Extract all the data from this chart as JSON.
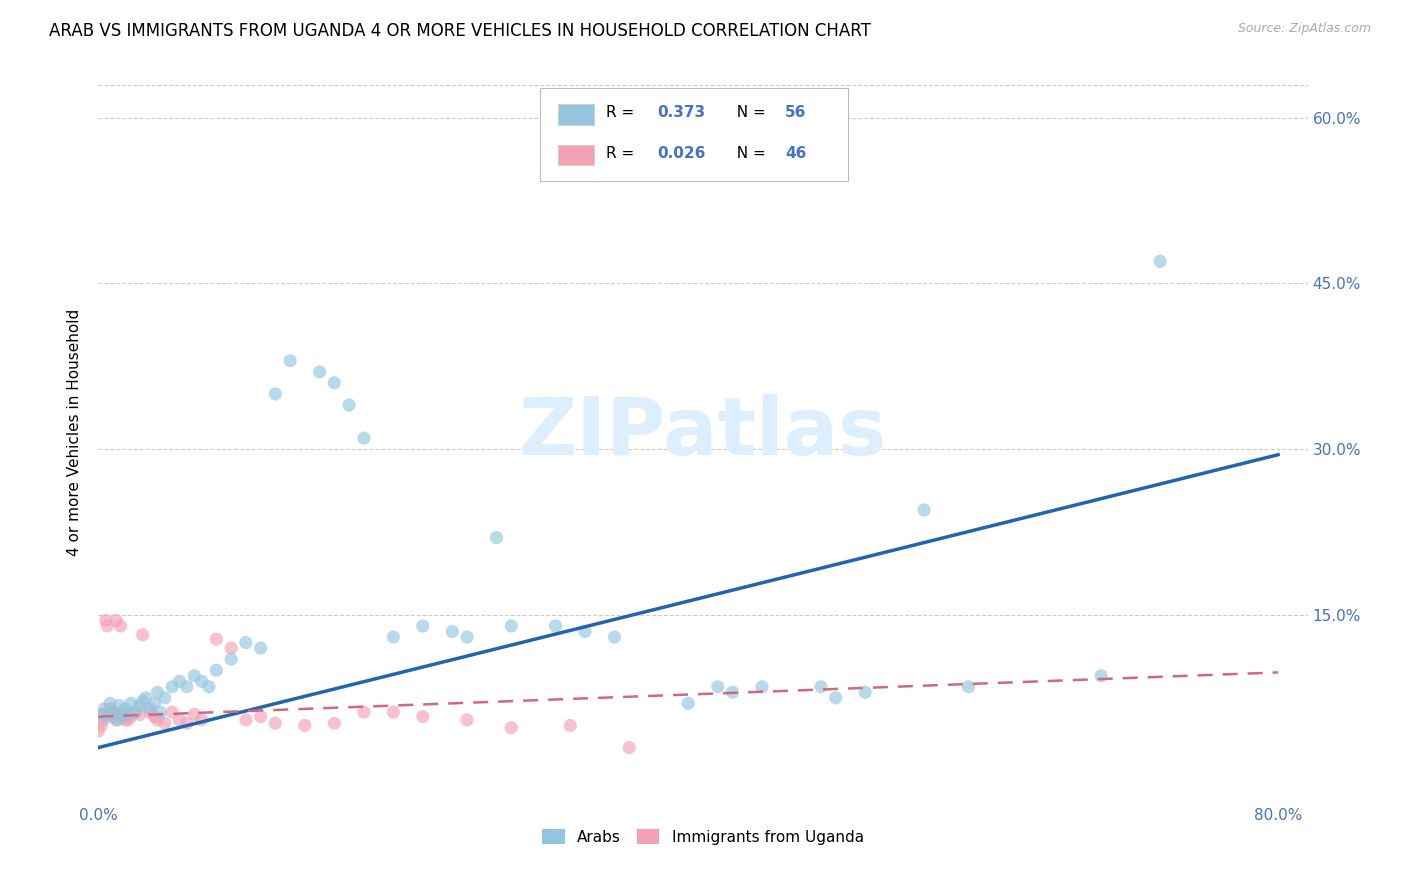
{
  "title": "ARAB VS IMMIGRANTS FROM UGANDA 4 OR MORE VEHICLES IN HOUSEHOLD CORRELATION CHART",
  "source": "Source: ZipAtlas.com",
  "ylabel": "4 or more Vehicles in Household",
  "xlim": [
    0.0,
    0.82
  ],
  "ylim": [
    -0.02,
    0.65
  ],
  "xticks": [
    0.0,
    0.2,
    0.4,
    0.6,
    0.8
  ],
  "xtick_labels": [
    "0.0%",
    "",
    "",
    "",
    "80.0%"
  ],
  "ytick_labels_right": [
    "15.0%",
    "30.0%",
    "45.0%",
    "60.0%"
  ],
  "yticks_right": [
    0.15,
    0.3,
    0.45,
    0.6
  ],
  "watermark": "ZIPatlas",
  "arab_x": [
    0.002,
    0.004,
    0.006,
    0.008,
    0.01,
    0.012,
    0.014,
    0.016,
    0.018,
    0.02,
    0.022,
    0.025,
    0.028,
    0.03,
    0.032,
    0.035,
    0.038,
    0.04,
    0.042,
    0.045,
    0.05,
    0.055,
    0.06,
    0.065,
    0.07,
    0.075,
    0.08,
    0.09,
    0.1,
    0.11,
    0.12,
    0.13,
    0.15,
    0.16,
    0.17,
    0.18,
    0.2,
    0.22,
    0.24,
    0.25,
    0.27,
    0.28,
    0.31,
    0.33,
    0.35,
    0.4,
    0.42,
    0.43,
    0.45,
    0.49,
    0.5,
    0.52,
    0.56,
    0.59,
    0.68,
    0.72
  ],
  "arab_y": [
    0.06,
    0.065,
    0.058,
    0.07,
    0.062,
    0.055,
    0.068,
    0.058,
    0.065,
    0.06,
    0.07,
    0.062,
    0.068,
    0.072,
    0.075,
    0.065,
    0.07,
    0.08,
    0.062,
    0.075,
    0.085,
    0.09,
    0.085,
    0.095,
    0.09,
    0.085,
    0.1,
    0.11,
    0.125,
    0.12,
    0.35,
    0.38,
    0.37,
    0.36,
    0.34,
    0.31,
    0.13,
    0.14,
    0.135,
    0.13,
    0.22,
    0.14,
    0.14,
    0.135,
    0.13,
    0.07,
    0.085,
    0.08,
    0.085,
    0.085,
    0.075,
    0.08,
    0.245,
    0.085,
    0.095,
    0.47
  ],
  "ugandan_x": [
    0.0,
    0.002,
    0.003,
    0.004,
    0.005,
    0.006,
    0.007,
    0.008,
    0.009,
    0.01,
    0.011,
    0.012,
    0.013,
    0.014,
    0.015,
    0.016,
    0.017,
    0.018,
    0.02,
    0.022,
    0.025,
    0.028,
    0.03,
    0.035,
    0.038,
    0.04,
    0.045,
    0.05,
    0.055,
    0.06,
    0.065,
    0.07,
    0.08,
    0.09,
    0.1,
    0.11,
    0.12,
    0.14,
    0.16,
    0.18,
    0.2,
    0.22,
    0.25,
    0.28,
    0.32,
    0.36
  ],
  "ugandan_y": [
    0.045,
    0.05,
    0.055,
    0.06,
    0.145,
    0.14,
    0.06,
    0.065,
    0.06,
    0.062,
    0.058,
    0.145,
    0.055,
    0.06,
    0.14,
    0.058,
    0.062,
    0.055,
    0.055,
    0.058,
    0.062,
    0.06,
    0.132,
    0.062,
    0.058,
    0.055,
    0.052,
    0.062,
    0.055,
    0.052,
    0.06,
    0.055,
    0.128,
    0.12,
    0.055,
    0.058,
    0.052,
    0.05,
    0.052,
    0.062,
    0.062,
    0.058,
    0.055,
    0.048,
    0.05,
    0.03
  ],
  "arab_line_x": [
    0.0,
    0.8
  ],
  "arab_line_y": [
    0.03,
    0.295
  ],
  "ugandan_line_x": [
    0.0,
    0.8
  ],
  "ugandan_line_y": [
    0.058,
    0.098
  ],
  "arab_color": "#92c5de",
  "ugandan_color": "#f4a0b5",
  "arab_line_color": "#2166ac",
  "ugandan_line_color": "#d06880",
  "background_color": "#ffffff",
  "grid_color": "#cccccc",
  "title_fontsize": 12,
  "axis_label_fontsize": 11,
  "tick_fontsize": 11,
  "marker_size": 90
}
